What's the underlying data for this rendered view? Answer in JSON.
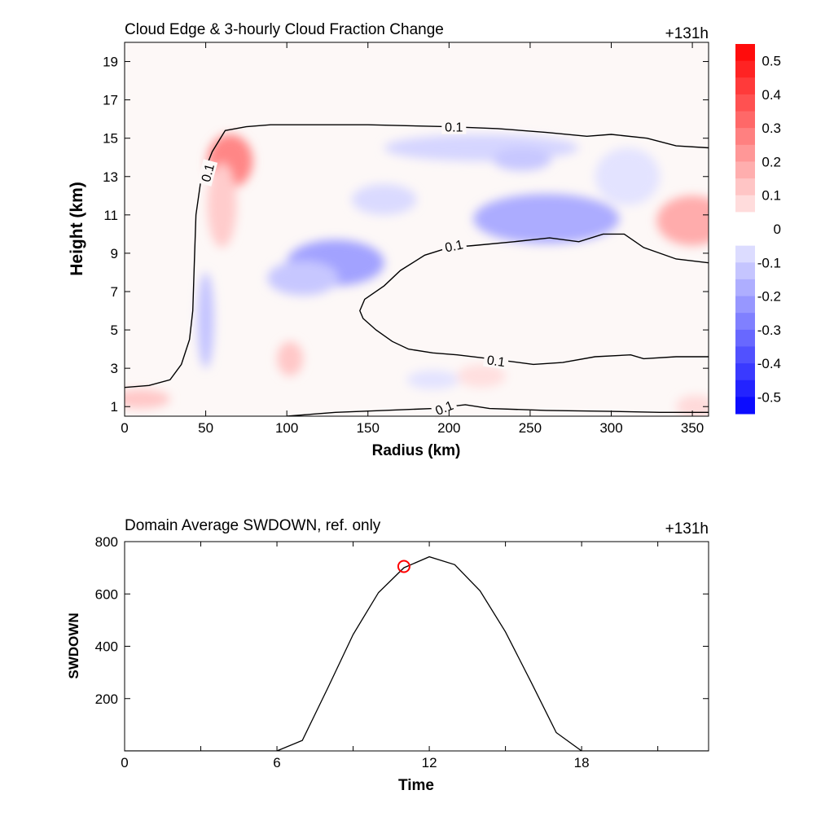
{
  "chart_data": [
    {
      "type": "heatmap",
      "title": "Cloud Edge & 3-hourly Cloud Fraction Change",
      "time_label": "+131h",
      "xlabel": "Radius (km)",
      "ylabel": "Height (km)",
      "xlim": [
        0,
        360
      ],
      "ylim": [
        0.5,
        20
      ],
      "x_ticks": [
        "0",
        "50",
        "100",
        "150",
        "200",
        "250",
        "300",
        "350"
      ],
      "y_ticks": [
        "1",
        "3",
        "5",
        "7",
        "9",
        "11",
        "13",
        "15",
        "17",
        "19"
      ],
      "colorbar": {
        "levels": [
          "0.5",
          "0.4",
          "0.3",
          "0.2",
          "0.1",
          "0",
          "-0.1",
          "-0.2",
          "-0.3",
          "-0.4",
          "-0.5"
        ],
        "range": [
          -0.55,
          0.55
        ],
        "positive_color": "#ff0000",
        "negative_color": "#0000ff"
      },
      "contour_label": "0.1",
      "contours": [
        {
          "name": "outer-cloud-edge",
          "points": [
            [
              0,
              2.0
            ],
            [
              15,
              2.1
            ],
            [
              28,
              2.4
            ],
            [
              35,
              3.2
            ],
            [
              40,
              4.5
            ],
            [
              42,
              6.0
            ],
            [
              43,
              8.5
            ],
            [
              44,
              11.0
            ],
            [
              47,
              12.8
            ],
            [
              54,
              14.3
            ],
            [
              62,
              15.4
            ],
            [
              75,
              15.6
            ],
            [
              90,
              15.7
            ],
            [
              110,
              15.7
            ],
            [
              150,
              15.7
            ],
            [
              200,
              15.6
            ],
            [
              230,
              15.5
            ],
            [
              260,
              15.3
            ],
            [
              285,
              15.1
            ],
            [
              300,
              15.2
            ],
            [
              322,
              15.0
            ],
            [
              340,
              14.6
            ],
            [
              360,
              14.5
            ]
          ]
        },
        {
          "name": "inner-dry-slot",
          "points": [
            [
              360,
              8.5
            ],
            [
              340,
              8.7
            ],
            [
              320,
              9.3
            ],
            [
              308,
              10.0
            ],
            [
              295,
              10.0
            ],
            [
              280,
              9.6
            ],
            [
              262,
              9.8
            ],
            [
              240,
              9.6
            ],
            [
              215,
              9.4
            ],
            [
              200,
              9.3
            ],
            [
              185,
              8.9
            ],
            [
              170,
              8.1
            ],
            [
              160,
              7.3
            ],
            [
              148,
              6.6
            ],
            [
              145,
              6.0
            ],
            [
              147,
              5.6
            ],
            [
              155,
              5.0
            ],
            [
              165,
              4.4
            ],
            [
              175,
              4.0
            ],
            [
              190,
              3.8
            ],
            [
              205,
              3.7
            ],
            [
              225,
              3.5
            ],
            [
              252,
              3.2
            ],
            [
              270,
              3.3
            ],
            [
              290,
              3.6
            ],
            [
              312,
              3.7
            ],
            [
              320,
              3.5
            ],
            [
              340,
              3.6
            ],
            [
              360,
              3.6
            ]
          ]
        },
        {
          "name": "lower-cloud-base",
          "points": [
            [
              100,
              0.5
            ],
            [
              130,
              0.7
            ],
            [
              160,
              0.8
            ],
            [
              190,
              0.9
            ],
            [
              210,
              1.1
            ],
            [
              225,
              0.9
            ],
            [
              260,
              0.8
            ],
            [
              300,
              0.75
            ],
            [
              330,
              0.7
            ],
            [
              360,
              0.7
            ]
          ]
        }
      ],
      "anomalies": [
        {
          "kind": "increase",
          "r": 65,
          "h": 13.8,
          "sr": 14,
          "sh": 1.4,
          "v": 0.26
        },
        {
          "kind": "increase",
          "r": 60,
          "h": 11.5,
          "sr": 9,
          "sh": 2.2,
          "v": 0.11
        },
        {
          "kind": "increase",
          "r": 350,
          "h": 10.7,
          "sr": 22,
          "sh": 1.3,
          "v": 0.18
        },
        {
          "kind": "increase",
          "r": 102,
          "h": 3.5,
          "sr": 8,
          "sh": 0.9,
          "v": 0.12
        },
        {
          "kind": "increase",
          "r": 10,
          "h": 1.4,
          "sr": 18,
          "sh": 0.5,
          "v": 0.12
        },
        {
          "kind": "increase",
          "r": 220,
          "h": 2.6,
          "sr": 15,
          "sh": 0.6,
          "v": 0.07
        },
        {
          "kind": "increase",
          "r": 352,
          "h": 1.0,
          "sr": 12,
          "sh": 0.6,
          "v": 0.08
        },
        {
          "kind": "decrease",
          "r": 130,
          "h": 8.5,
          "sr": 30,
          "sh": 1.2,
          "v": -0.2
        },
        {
          "kind": "decrease",
          "r": 110,
          "h": 7.7,
          "sr": 22,
          "sh": 0.9,
          "v": -0.12
        },
        {
          "kind": "decrease",
          "r": 260,
          "h": 10.8,
          "sr": 45,
          "sh": 1.3,
          "v": -0.18
        },
        {
          "kind": "decrease",
          "r": 220,
          "h": 14.5,
          "sr": 60,
          "sh": 0.7,
          "v": -0.09
        },
        {
          "kind": "decrease",
          "r": 245,
          "h": 13.9,
          "sr": 18,
          "sh": 0.6,
          "v": -0.12
        },
        {
          "kind": "decrease",
          "r": 50,
          "h": 5.5,
          "sr": 5,
          "sh": 2.5,
          "v": -0.13
        },
        {
          "kind": "decrease",
          "r": 160,
          "h": 11.8,
          "sr": 20,
          "sh": 0.8,
          "v": -0.08
        },
        {
          "kind": "decrease",
          "r": 310,
          "h": 13.0,
          "sr": 20,
          "sh": 1.5,
          "v": -0.06
        },
        {
          "kind": "decrease",
          "r": 190,
          "h": 2.4,
          "sr": 16,
          "sh": 0.5,
          "v": -0.06
        }
      ]
    },
    {
      "type": "line",
      "title": "Domain Average SWDOWN, ref. only",
      "time_label": "+131h",
      "xlabel": "Time",
      "ylabel": "SWDOWN",
      "xlim": [
        0,
        23
      ],
      "ylim": [
        0,
        800
      ],
      "x_ticks": [
        "0",
        "6",
        "12",
        "18"
      ],
      "y_ticks": [
        "200",
        "400",
        "600",
        "800"
      ],
      "x": [
        0,
        1,
        2,
        3,
        4,
        5,
        6,
        7,
        8,
        9,
        10,
        11,
        12,
        13,
        14,
        15,
        16,
        17,
        18,
        19,
        20,
        21,
        22,
        23
      ],
      "y": [
        0,
        0,
        0,
        0,
        0,
        0,
        0,
        40,
        240,
        445,
        605,
        700,
        742,
        712,
        612,
        455,
        265,
        70,
        0,
        0,
        0,
        0,
        0,
        0
      ],
      "marker": {
        "x": 11,
        "y": 705,
        "color": "#ff0000"
      },
      "line_color": "#000000"
    }
  ]
}
